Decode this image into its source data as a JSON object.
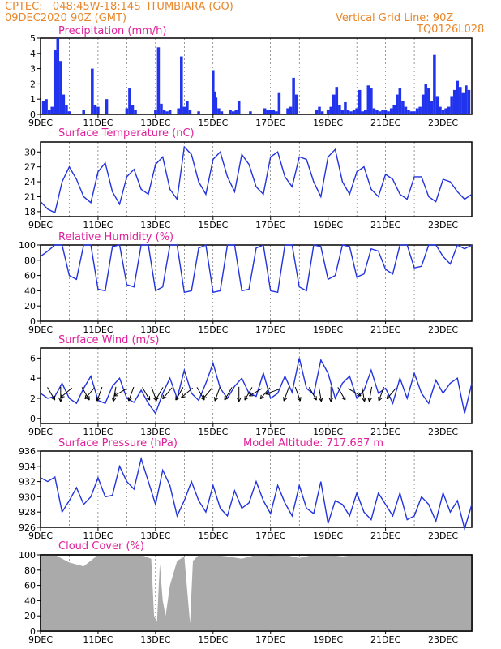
{
  "header": {
    "line1": "CPTEC:   048:45W-18:14S  ITUMBIARA (GO)",
    "line2": "09DEC2020 90Z (GMT)",
    "grid_note": "Vertical Grid Line: 90Z",
    "code": "TQ0126L028"
  },
  "colors": {
    "header": "#e8862a",
    "title": "#e0209a",
    "line": "#2233dd",
    "bar": "#2233ee",
    "cloud": "#aaaaaa"
  },
  "model_altitude": "Model Altitude: 717.687 m",
  "x_ticks": [
    "9DEC",
    "11DEC",
    "13DEC",
    "15DEC",
    "17DEC",
    "19DEC",
    "21DEC",
    "23DEC"
  ],
  "chart_data": [
    {
      "type": "bar",
      "title": "Precipitation (mm/h)",
      "x": [
        0.1,
        0.2,
        0.3,
        0.4,
        0.5,
        0.6,
        0.7,
        0.8,
        0.9,
        1.0,
        1.5,
        1.8,
        1.9,
        2.0,
        2.3,
        3.0,
        3.1,
        3.2,
        3.3,
        4.0,
        4.1,
        4.2,
        4.3,
        4.4,
        4.5,
        4.8,
        4.9,
        5.0,
        5.1,
        5.2,
        5.5,
        6.0,
        6.05,
        6.1,
        6.2,
        6.3,
        6.6,
        6.7,
        6.8,
        6.9,
        7.3,
        7.8,
        7.9,
        8.0,
        8.1,
        8.2,
        8.3,
        8.6,
        8.7,
        8.8,
        8.9,
        9.6,
        9.7,
        9.8,
        10.0,
        10.1,
        10.2,
        10.3,
        10.4,
        10.5,
        10.6,
        10.7,
        10.8,
        10.9,
        11.0,
        11.1,
        11.2,
        11.3,
        11.4,
        11.5,
        11.6,
        11.7,
        11.8,
        11.9,
        12.0,
        12.1,
        12.2,
        12.3,
        12.4,
        12.5,
        12.6,
        12.7,
        12.8,
        12.9,
        13.0,
        13.1,
        13.2,
        13.3,
        13.4,
        13.5,
        13.6,
        13.7,
        13.8,
        13.9,
        14.0,
        14.1,
        14.2,
        14.3,
        14.4,
        14.5,
        14.6,
        14.7,
        14.8,
        14.9
      ],
      "values": [
        0.9,
        1.0,
        0.3,
        0.5,
        4.2,
        5.0,
        3.5,
        1.3,
        0.6,
        0.2,
        0.3,
        3.0,
        0.6,
        0.5,
        1.0,
        0.4,
        1.7,
        0.6,
        0.3,
        0.3,
        4.4,
        0.7,
        0.3,
        0.2,
        0.3,
        0.4,
        3.8,
        0.5,
        0.9,
        0.3,
        0.2,
        2.9,
        1.5,
        1.1,
        0.4,
        0.2,
        0.3,
        0.2,
        0.3,
        0.9,
        0.2,
        0.4,
        0.3,
        0.3,
        0.3,
        0.2,
        1.4,
        0.4,
        0.5,
        2.4,
        1.3,
        0.3,
        0.5,
        0.2,
        0.3,
        0.5,
        1.3,
        1.8,
        0.6,
        0.3,
        0.8,
        0.3,
        0.2,
        0.3,
        0.4,
        1.6,
        0.2,
        0.3,
        1.9,
        1.7,
        0.4,
        0.3,
        0.2,
        0.3,
        0.3,
        0.2,
        0.4,
        0.6,
        1.3,
        1.7,
        0.9,
        0.5,
        0.3,
        0.2,
        0.2,
        0.4,
        0.5,
        1.3,
        2.0,
        1.7,
        0.9,
        3.9,
        1.2,
        0.5,
        0.3,
        0.4,
        0.5,
        1.2,
        1.6,
        2.2,
        1.8,
        1.4,
        1.9,
        1.6
      ],
      "ylim": [
        0,
        5
      ],
      "yticks": [
        0,
        1,
        2,
        3,
        4,
        5
      ]
    },
    {
      "type": "line",
      "title": "Surface Temperature (nC)",
      "x": [
        0,
        0.25,
        0.5,
        0.75,
        1.0,
        1.25,
        1.5,
        1.75,
        2.0,
        2.25,
        2.5,
        2.75,
        3.0,
        3.25,
        3.5,
        3.75,
        4.0,
        4.25,
        4.5,
        4.75,
        5.0,
        5.25,
        5.5,
        5.75,
        6.0,
        6.25,
        6.5,
        6.75,
        7.0,
        7.25,
        7.5,
        7.75,
        8.0,
        8.25,
        8.5,
        8.75,
        9.0,
        9.25,
        9.5,
        9.75,
        10.0,
        10.25,
        10.5,
        10.75,
        11.0,
        11.25,
        11.5,
        11.75,
        12.0,
        12.25,
        12.5,
        12.75,
        13.0,
        13.25,
        13.5,
        13.75,
        14.0,
        14.25,
        14.5,
        14.75,
        15.0
      ],
      "values": [
        20.0,
        18.5,
        17.8,
        24.0,
        27.0,
        24.5,
        21.0,
        19.8,
        26.0,
        27.8,
        22.0,
        19.5,
        25.0,
        26.5,
        22.5,
        21.5,
        27.5,
        29.0,
        22.5,
        20.5,
        31.0,
        29.5,
        24.0,
        21.5,
        28.5,
        30.0,
        25.0,
        22.0,
        29.5,
        27.5,
        23.0,
        21.5,
        29.0,
        30.0,
        25.0,
        23.0,
        29.0,
        28.5,
        24.0,
        21.0,
        29.0,
        30.5,
        24.0,
        21.5,
        26.0,
        27.0,
        22.5,
        21.0,
        25.5,
        24.5,
        21.5,
        20.5,
        25.0,
        25.0,
        21.0,
        20.0,
        24.5,
        24.0,
        22.0,
        20.5,
        21.5
      ],
      "ylim": [
        17,
        32
      ],
      "yticks": [
        18,
        21,
        24,
        27,
        30
      ]
    },
    {
      "type": "line",
      "title": "Relative Humidity (%)",
      "x": [
        0,
        0.25,
        0.5,
        0.75,
        1.0,
        1.25,
        1.5,
        1.75,
        2.0,
        2.25,
        2.5,
        2.75,
        3.0,
        3.25,
        3.5,
        3.75,
        4.0,
        4.25,
        4.5,
        4.75,
        5.0,
        5.25,
        5.5,
        5.75,
        6.0,
        6.25,
        6.5,
        6.75,
        7.0,
        7.25,
        7.5,
        7.75,
        8.0,
        8.25,
        8.5,
        8.75,
        9.0,
        9.25,
        9.5,
        9.75,
        10.0,
        10.25,
        10.5,
        10.75,
        11.0,
        11.25,
        11.5,
        11.75,
        12.0,
        12.25,
        12.5,
        12.75,
        13.0,
        13.25,
        13.5,
        13.75,
        14.0,
        14.25,
        14.5,
        14.75,
        15.0
      ],
      "values": [
        85,
        92,
        100,
        100,
        60,
        55,
        100,
        100,
        42,
        40,
        98,
        100,
        48,
        45,
        100,
        100,
        40,
        45,
        100,
        100,
        38,
        40,
        96,
        100,
        38,
        40,
        100,
        100,
        40,
        42,
        96,
        100,
        40,
        38,
        100,
        100,
        45,
        40,
        100,
        98,
        55,
        60,
        100,
        98,
        58,
        62,
        95,
        92,
        68,
        62,
        100,
        100,
        70,
        72,
        100,
        100,
        85,
        75,
        100,
        95,
        100
      ],
      "ylim": [
        0,
        100
      ],
      "yticks": [
        0,
        20,
        40,
        60,
        80,
        100
      ]
    },
    {
      "type": "line",
      "title": "Surface Wind (m/s)",
      "x": [
        0,
        0.25,
        0.5,
        0.75,
        1.0,
        1.25,
        1.5,
        1.75,
        2.0,
        2.25,
        2.5,
        2.75,
        3.0,
        3.25,
        3.5,
        3.75,
        4.0,
        4.25,
        4.5,
        4.75,
        5.0,
        5.25,
        5.5,
        5.75,
        6.0,
        6.25,
        6.5,
        6.75,
        7.0,
        7.25,
        7.5,
        7.75,
        8.0,
        8.25,
        8.5,
        8.75,
        9.0,
        9.25,
        9.5,
        9.75,
        10.0,
        10.25,
        10.5,
        10.75,
        11.0,
        11.25,
        11.5,
        11.75,
        12.0,
        12.25,
        12.5,
        12.75,
        13.0,
        13.25,
        13.5,
        13.75,
        14.0,
        14.25,
        14.5,
        14.75,
        15.0
      ],
      "values": [
        2.5,
        2.0,
        2.2,
        3.5,
        2.0,
        1.5,
        3.0,
        4.2,
        1.8,
        1.5,
        3.2,
        4.0,
        2.0,
        1.6,
        2.8,
        1.5,
        0.5,
        2.5,
        4.0,
        2.0,
        4.8,
        2.5,
        1.8,
        3.5,
        5.5,
        3.0,
        2.0,
        3.2,
        4.0,
        2.5,
        2.2,
        4.5,
        2.0,
        2.5,
        4.2,
        2.6,
        6.0,
        3.0,
        2.4,
        5.8,
        4.5,
        2.0,
        3.5,
        4.2,
        2.0,
        2.8,
        4.8,
        2.5,
        3.0,
        1.5,
        4.0,
        2.0,
        4.5,
        2.5,
        1.5,
        3.8,
        2.5,
        3.5,
        4.0,
        0.5,
        3.5
      ],
      "ylim": [
        -0.5,
        7
      ],
      "yticks": [
        0,
        2,
        4,
        6
      ],
      "arrow_angles_deg": [
        -60,
        -90,
        -140,
        -60,
        -130,
        -110,
        -100,
        -150,
        -110,
        -60,
        -70,
        -120,
        -130,
        -120,
        -140,
        -60,
        -130,
        -110,
        -120,
        -90,
        -120,
        -150,
        -130,
        -160,
        -110,
        -70,
        -60,
        -80,
        -90,
        -60,
        -30,
        -80,
        -100,
        -110,
        -130
      ],
      "arrow_x": [
        0.3,
        0.7,
        1.0,
        1.5,
        1.8,
        2.1,
        2.6,
        2.9,
        3.2,
        3.6,
        3.9,
        4.2,
        4.5,
        4.9,
        5.2,
        5.5,
        5.9,
        6.2,
        6.6,
        6.9,
        7.3,
        7.6,
        7.9,
        8.2,
        8.6,
        8.9,
        9.4,
        9.7,
        10.1,
        10.4,
        10.8,
        11.2,
        11.5,
        11.9,
        12.3
      ]
    },
    {
      "type": "line",
      "title": "Surface Pressure (hPa)",
      "x": [
        0,
        0.25,
        0.5,
        0.75,
        1.0,
        1.25,
        1.5,
        1.75,
        2.0,
        2.25,
        2.5,
        2.75,
        3.0,
        3.25,
        3.5,
        3.75,
        4.0,
        4.25,
        4.5,
        4.75,
        5.0,
        5.25,
        5.5,
        5.75,
        6.0,
        6.25,
        6.5,
        6.75,
        7.0,
        7.25,
        7.5,
        7.75,
        8.0,
        8.25,
        8.5,
        8.75,
        9.0,
        9.25,
        9.5,
        9.75,
        10.0,
        10.25,
        10.5,
        10.75,
        11.0,
        11.25,
        11.5,
        11.75,
        12.0,
        12.25,
        12.5,
        12.75,
        13.0,
        13.25,
        13.5,
        13.75,
        14.0,
        14.25,
        14.5,
        14.75,
        15.0
      ],
      "values": [
        932.5,
        932.0,
        932.6,
        928.0,
        929.5,
        931.2,
        929.0,
        930.0,
        932.5,
        930.0,
        930.2,
        934.0,
        932.0,
        931.0,
        935.0,
        932.0,
        929.0,
        933.5,
        931.5,
        927.5,
        929.5,
        932.0,
        929.5,
        928.0,
        931.5,
        928.5,
        927.5,
        930.8,
        928.5,
        929.2,
        932.0,
        929.5,
        927.8,
        931.5,
        929.2,
        927.5,
        931.5,
        928.5,
        927.8,
        932.0,
        926.5,
        929.5,
        929.0,
        927.5,
        930.5,
        928.0,
        927.0,
        930.5,
        929.0,
        927.5,
        930.5,
        927.0,
        927.5,
        930.0,
        929.0,
        926.8,
        930.5,
        928.0,
        929.5,
        925.8,
        929.0
      ],
      "ylim": [
        926,
        936
      ],
      "yticks": [
        926,
        928,
        930,
        932,
        934,
        936
      ]
    },
    {
      "type": "area",
      "title": "Cloud Cover (%)",
      "x": [
        0,
        0.5,
        1.0,
        1.5,
        2.0,
        2.5,
        3.0,
        3.5,
        3.85,
        3.95,
        4.05,
        4.15,
        4.25,
        4.35,
        4.5,
        4.75,
        5.0,
        5.2,
        5.3,
        5.5,
        6.0,
        6.5,
        7.0,
        7.5,
        8.0,
        8.5,
        9.0,
        9.5,
        10.0,
        10.5,
        11.0,
        11.5,
        12.0,
        12.5,
        13.0,
        13.5,
        14.0,
        14.5,
        15.0
      ],
      "values": [
        100,
        100,
        90,
        85,
        100,
        100,
        100,
        100,
        95,
        20,
        12,
        88,
        40,
        20,
        60,
        92,
        98,
        10,
        92,
        100,
        100,
        98,
        95,
        100,
        99,
        100,
        96,
        100,
        100,
        98,
        100,
        100,
        100,
        100,
        99,
        100,
        100,
        100,
        100
      ],
      "ylim": [
        0,
        100
      ],
      "yticks": [
        0,
        20,
        40,
        60,
        80,
        100
      ]
    }
  ]
}
